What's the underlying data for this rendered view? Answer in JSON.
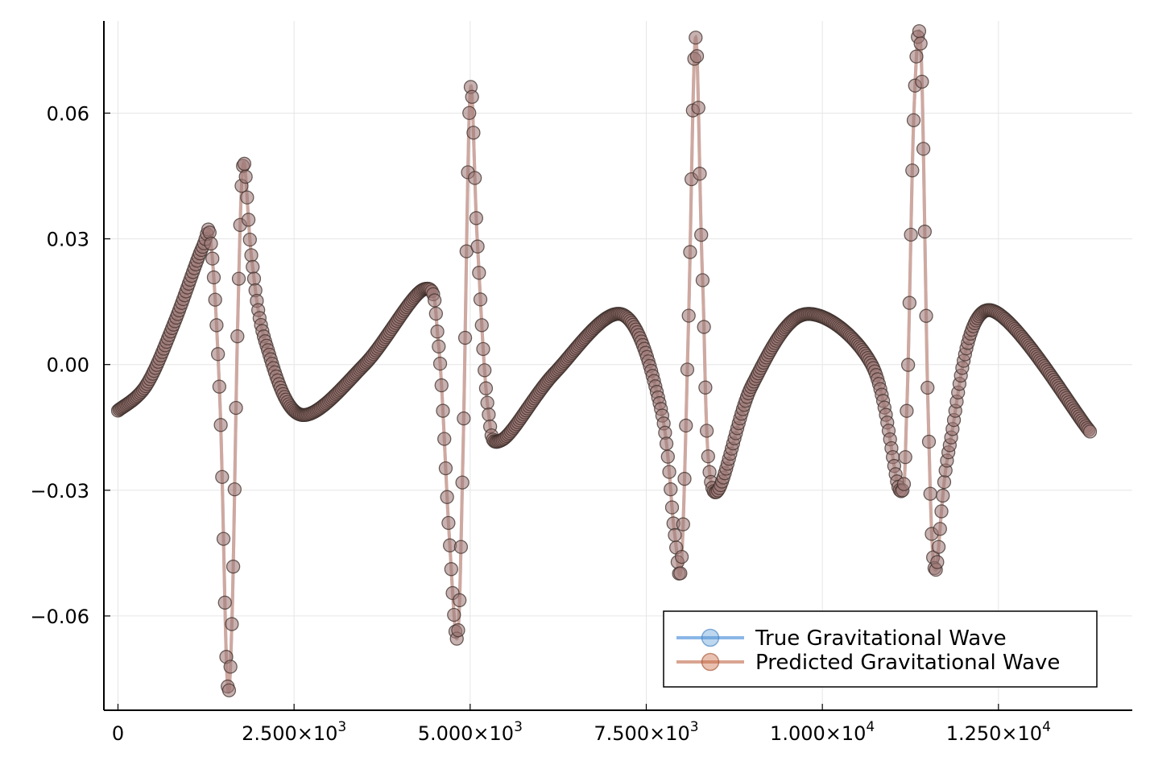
{
  "chart_data": {
    "type": "line",
    "title": "",
    "xlabel": "",
    "ylabel": "",
    "xlim": [
      -200,
      14400
    ],
    "ylim": [
      -0.0825,
      0.082
    ],
    "grid": true,
    "legend_position": "bottom-right",
    "x_ticks": [
      {
        "value": 0,
        "label": "0"
      },
      {
        "value": 2500,
        "label": "2.500×10",
        "exp": "3"
      },
      {
        "value": 5000,
        "label": "5.000×10",
        "exp": "3"
      },
      {
        "value": 7500,
        "label": "7.500×10",
        "exp": "3"
      },
      {
        "value": 10000,
        "label": "1.000×10",
        "exp": "4"
      },
      {
        "value": 12500,
        "label": "1.250×10",
        "exp": "4"
      }
    ],
    "y_ticks": [
      {
        "value": 0.06,
        "label": "0.06"
      },
      {
        "value": 0.03,
        "label": "0.03"
      },
      {
        "value": 0.0,
        "label": "0.00"
      },
      {
        "value": -0.03,
        "label": "−0.03"
      },
      {
        "value": -0.06,
        "label": "−0.06"
      }
    ],
    "series": [
      {
        "name": "True Gravitational Wave",
        "color": "#8ab6e6",
        "marker_color": "#5b9bd5"
      },
      {
        "name": "Predicted Gravitational Wave",
        "color": "#d9a592",
        "marker_color": "#c8643c"
      }
    ],
    "x": [
      0,
      400,
      800,
      1200,
      1320,
      1450,
      1550,
      1620,
      1700,
      1780,
      1900,
      2100,
      2600,
      3500,
      4350,
      4550,
      4700,
      4820,
      4900,
      5000,
      5100,
      5250,
      5450,
      6200,
      7150,
      7700,
      7900,
      8000,
      8100,
      8200,
      8300,
      8450,
      9000,
      9750,
      10700,
      11100,
      11200,
      11300,
      11400,
      11500,
      11600,
      11800,
      12350,
      13800
    ],
    "y": [
      -0.011,
      -0.005,
      0.01,
      0.028,
      0.029,
      -0.01,
      -0.075,
      -0.06,
      0.01,
      0.048,
      0.025,
      0.005,
      -0.012,
      0.0,
      0.018,
      0.005,
      -0.04,
      -0.065,
      -0.02,
      0.065,
      0.03,
      -0.01,
      -0.018,
      -0.002,
      0.012,
      -0.01,
      -0.04,
      -0.047,
      0.01,
      0.078,
      0.02,
      -0.03,
      -0.005,
      0.012,
      0.0,
      -0.03,
      -0.01,
      0.06,
      0.075,
      -0.01,
      -0.049,
      -0.02,
      0.013,
      -0.016
    ]
  }
}
